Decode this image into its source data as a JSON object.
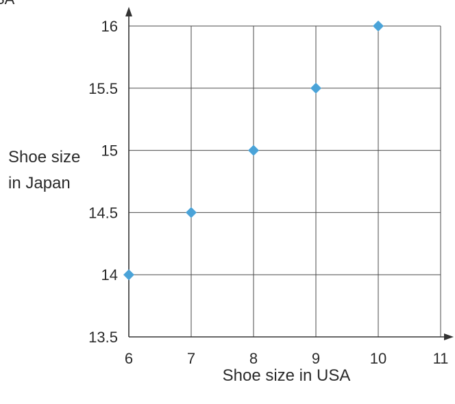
{
  "top_fragment": "SA",
  "chart_data": {
    "type": "scatter",
    "xlabel": "Shoe size in USA",
    "ylabel": [
      "Shoe size",
      "in Japan"
    ],
    "xlim": [
      6,
      11
    ],
    "ylim": [
      13.5,
      16
    ],
    "x_ticks": [
      "6",
      "7",
      "8",
      "9",
      "10",
      "11"
    ],
    "y_ticks": [
      "13.5",
      "14",
      "14.5",
      "15",
      "15.5",
      "16"
    ],
    "grid": true,
    "marker": "diamond",
    "marker_color": "#4aa3d8",
    "points": [
      {
        "x": 6,
        "y": 14
      },
      {
        "x": 7,
        "y": 14.5
      },
      {
        "x": 8,
        "y": 15
      },
      {
        "x": 9,
        "y": 15.5
      },
      {
        "x": 10,
        "y": 16
      }
    ]
  }
}
